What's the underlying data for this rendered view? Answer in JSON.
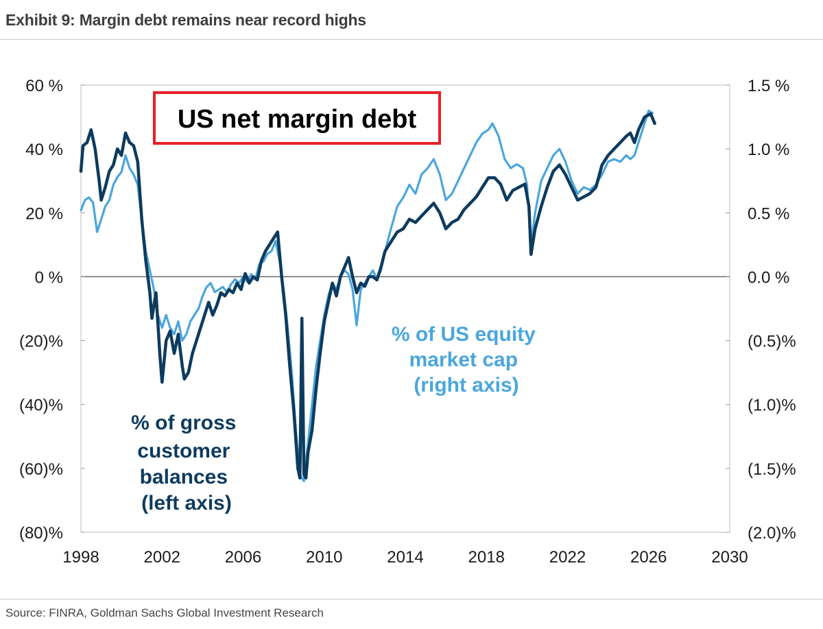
{
  "exhibit_title": "Exhibit 9: Margin debt remains near record highs",
  "source": "Source: FINRA, Goldman Sachs Global Investment Research",
  "chart_data": {
    "type": "line",
    "title": "US net margin debt",
    "xlim": [
      1998,
      2030
    ],
    "x_ticks": [
      "1998",
      "2002",
      "2006",
      "2010",
      "2014",
      "2018",
      "2022",
      "2026",
      "2030"
    ],
    "y_left": {
      "lim": [
        -80,
        60
      ],
      "ticks": [
        {
          "value": 60,
          "label": "60 %"
        },
        {
          "value": 40,
          "label": "40 %"
        },
        {
          "value": 20,
          "label": "20 %"
        },
        {
          "value": 0,
          "label": "0 %"
        },
        {
          "value": -20,
          "label": "(20)%"
        },
        {
          "value": -40,
          "label": "(40)%"
        },
        {
          "value": -60,
          "label": "(60)%"
        },
        {
          "value": -80,
          "label": "(80)%"
        }
      ]
    },
    "y_right": {
      "lim": [
        -2.0,
        1.5
      ],
      "ticks": [
        {
          "value": 1.5,
          "label": "1.5 %"
        },
        {
          "value": 1.0,
          "label": "1.0 %"
        },
        {
          "value": 0.5,
          "label": "0.5 %"
        },
        {
          "value": 0.0,
          "label": "0.0 %"
        },
        {
          "value": -0.5,
          "label": "(0.5)%"
        },
        {
          "value": -1.0,
          "label": "(1.0)%"
        },
        {
          "value": -1.5,
          "label": "(1.5)%"
        },
        {
          "value": -2.0,
          "label": "(2.0)%"
        }
      ]
    },
    "series": [
      {
        "name": "% of gross customer balances (left axis)",
        "label_lines": [
          "% of gross",
          "customer",
          "balances",
          "(left axis)"
        ],
        "axis": "left",
        "color": "#0d3b5e",
        "points": [
          [
            1998.0,
            33
          ],
          [
            1998.1,
            41
          ],
          [
            1998.3,
            42
          ],
          [
            1998.5,
            46
          ],
          [
            1998.7,
            40
          ],
          [
            1998.9,
            30
          ],
          [
            1999.0,
            24
          ],
          [
            1999.2,
            28
          ],
          [
            1999.4,
            33
          ],
          [
            1999.6,
            35
          ],
          [
            1999.8,
            40
          ],
          [
            2000.0,
            38
          ],
          [
            2000.2,
            45
          ],
          [
            2000.4,
            42
          ],
          [
            2000.6,
            41
          ],
          [
            2000.8,
            36
          ],
          [
            2001.0,
            18
          ],
          [
            2001.2,
            5
          ],
          [
            2001.4,
            -5
          ],
          [
            2001.5,
            -13
          ],
          [
            2001.7,
            -5
          ],
          [
            2001.9,
            -25
          ],
          [
            2002.0,
            -33
          ],
          [
            2002.2,
            -20
          ],
          [
            2002.4,
            -17
          ],
          [
            2002.6,
            -24
          ],
          [
            2002.8,
            -18
          ],
          [
            2003.0,
            -28
          ],
          [
            2003.1,
            -32
          ],
          [
            2003.3,
            -30
          ],
          [
            2003.5,
            -24
          ],
          [
            2003.7,
            -20
          ],
          [
            2003.9,
            -16
          ],
          [
            2004.1,
            -12
          ],
          [
            2004.3,
            -8
          ],
          [
            2004.5,
            -12
          ],
          [
            2004.7,
            -9
          ],
          [
            2004.9,
            -5
          ],
          [
            2005.1,
            -6
          ],
          [
            2005.3,
            -4
          ],
          [
            2005.5,
            -5
          ],
          [
            2005.7,
            -2
          ],
          [
            2005.9,
            -4
          ],
          [
            2006.1,
            1
          ],
          [
            2006.3,
            -2
          ],
          [
            2006.5,
            0
          ],
          [
            2006.7,
            -1
          ],
          [
            2006.9,
            5
          ],
          [
            2007.1,
            8
          ],
          [
            2007.3,
            10
          ],
          [
            2007.5,
            12
          ],
          [
            2007.7,
            14
          ],
          [
            2007.9,
            0
          ],
          [
            2008.1,
            -12
          ],
          [
            2008.3,
            -28
          ],
          [
            2008.5,
            -42
          ],
          [
            2008.7,
            -60
          ],
          [
            2008.8,
            -63
          ],
          [
            2008.9,
            -13
          ],
          [
            2009.0,
            -62
          ],
          [
            2009.1,
            -63
          ],
          [
            2009.2,
            -55
          ],
          [
            2009.4,
            -48
          ],
          [
            2009.6,
            -35
          ],
          [
            2009.8,
            -24
          ],
          [
            2010.0,
            -14
          ],
          [
            2010.2,
            -8
          ],
          [
            2010.4,
            -2
          ],
          [
            2010.6,
            -6
          ],
          [
            2010.8,
            0
          ],
          [
            2011.0,
            3
          ],
          [
            2011.2,
            6
          ],
          [
            2011.4,
            0
          ],
          [
            2011.6,
            -5
          ],
          [
            2011.8,
            -2
          ],
          [
            2012.0,
            -3
          ],
          [
            2012.2,
            0
          ],
          [
            2012.4,
            0
          ],
          [
            2012.6,
            -1
          ],
          [
            2012.8,
            3
          ],
          [
            2013.0,
            8
          ],
          [
            2013.3,
            11
          ],
          [
            2013.6,
            14
          ],
          [
            2013.9,
            15
          ],
          [
            2014.2,
            18
          ],
          [
            2014.5,
            17
          ],
          [
            2014.8,
            19
          ],
          [
            2015.1,
            21
          ],
          [
            2015.4,
            23
          ],
          [
            2015.7,
            20
          ],
          [
            2016.0,
            15
          ],
          [
            2016.3,
            17
          ],
          [
            2016.6,
            18
          ],
          [
            2016.9,
            21
          ],
          [
            2017.2,
            23
          ],
          [
            2017.5,
            25
          ],
          [
            2017.8,
            28
          ],
          [
            2018.1,
            31
          ],
          [
            2018.4,
            31
          ],
          [
            2018.7,
            29
          ],
          [
            2019.0,
            24
          ],
          [
            2019.3,
            27
          ],
          [
            2019.6,
            28
          ],
          [
            2019.9,
            29
          ],
          [
            2020.1,
            22
          ],
          [
            2020.2,
            7
          ],
          [
            2020.4,
            15
          ],
          [
            2020.7,
            22
          ],
          [
            2021.0,
            28
          ],
          [
            2021.3,
            33
          ],
          [
            2021.6,
            35
          ],
          [
            2021.9,
            32
          ],
          [
            2022.2,
            28
          ],
          [
            2022.5,
            24
          ],
          [
            2022.8,
            25
          ],
          [
            2023.1,
            26
          ],
          [
            2023.4,
            28
          ],
          [
            2023.7,
            35
          ],
          [
            2024.0,
            38
          ],
          [
            2024.3,
            40
          ],
          [
            2024.6,
            42
          ],
          [
            2024.9,
            44
          ],
          [
            2025.1,
            45
          ],
          [
            2025.3,
            42
          ],
          [
            2025.5,
            46
          ],
          [
            2025.8,
            50
          ],
          [
            2026.1,
            51
          ],
          [
            2026.3,
            48
          ]
        ]
      },
      {
        "name": "% of US equity market cap (right axis)",
        "label_lines": [
          "% of US equity",
          "market cap",
          "(right axis)"
        ],
        "axis": "right",
        "color": "#4aa6dc",
        "points": [
          [
            1998.0,
            0.52
          ],
          [
            1998.2,
            0.6
          ],
          [
            1998.4,
            0.62
          ],
          [
            1998.6,
            0.58
          ],
          [
            1998.8,
            0.35
          ],
          [
            1999.0,
            0.45
          ],
          [
            1999.2,
            0.55
          ],
          [
            1999.4,
            0.6
          ],
          [
            1999.6,
            0.72
          ],
          [
            1999.8,
            0.78
          ],
          [
            2000.0,
            0.82
          ],
          [
            2000.2,
            0.95
          ],
          [
            2000.4,
            0.85
          ],
          [
            2000.6,
            0.8
          ],
          [
            2000.8,
            0.72
          ],
          [
            2001.0,
            0.45
          ],
          [
            2001.2,
            0.2
          ],
          [
            2001.4,
            0.05
          ],
          [
            2001.6,
            -0.1
          ],
          [
            2001.8,
            -0.3
          ],
          [
            2002.0,
            -0.4
          ],
          [
            2002.2,
            -0.3
          ],
          [
            2002.4,
            -0.4
          ],
          [
            2002.6,
            -0.45
          ],
          [
            2002.8,
            -0.35
          ],
          [
            2003.0,
            -0.5
          ],
          [
            2003.2,
            -0.45
          ],
          [
            2003.4,
            -0.35
          ],
          [
            2003.6,
            -0.3
          ],
          [
            2003.8,
            -0.25
          ],
          [
            2004.0,
            -0.15
          ],
          [
            2004.2,
            -0.08
          ],
          [
            2004.4,
            -0.05
          ],
          [
            2004.6,
            -0.12
          ],
          [
            2004.8,
            -0.1
          ],
          [
            2005.0,
            -0.08
          ],
          [
            2005.2,
            -0.12
          ],
          [
            2005.4,
            -0.06
          ],
          [
            2005.6,
            -0.02
          ],
          [
            2005.8,
            -0.05
          ],
          [
            2006.0,
            0.0
          ],
          [
            2006.2,
            -0.04
          ],
          [
            2006.4,
            0.02
          ],
          [
            2006.6,
            -0.02
          ],
          [
            2006.8,
            0.1
          ],
          [
            2007.0,
            0.12
          ],
          [
            2007.2,
            0.18
          ],
          [
            2007.4,
            0.2
          ],
          [
            2007.6,
            0.28
          ],
          [
            2007.8,
            0.12
          ],
          [
            2008.0,
            -0.1
          ],
          [
            2008.2,
            -0.4
          ],
          [
            2008.4,
            -0.75
          ],
          [
            2008.6,
            -1.2
          ],
          [
            2008.8,
            -1.55
          ],
          [
            2009.0,
            -1.6
          ],
          [
            2009.2,
            -1.3
          ],
          [
            2009.4,
            -1.0
          ],
          [
            2009.6,
            -0.7
          ],
          [
            2009.8,
            -0.5
          ],
          [
            2010.0,
            -0.3
          ],
          [
            2010.2,
            -0.15
          ],
          [
            2010.4,
            -0.05
          ],
          [
            2010.6,
            -0.1
          ],
          [
            2010.8,
            0.0
          ],
          [
            2011.0,
            0.05
          ],
          [
            2011.2,
            0.02
          ],
          [
            2011.4,
            -0.1
          ],
          [
            2011.6,
            -0.38
          ],
          [
            2011.8,
            -0.1
          ],
          [
            2012.0,
            -0.05
          ],
          [
            2012.2,
            0.0
          ],
          [
            2012.4,
            0.05
          ],
          [
            2012.6,
            -0.02
          ],
          [
            2012.8,
            0.05
          ],
          [
            2013.0,
            0.2
          ],
          [
            2013.3,
            0.38
          ],
          [
            2013.6,
            0.55
          ],
          [
            2013.9,
            0.62
          ],
          [
            2014.2,
            0.72
          ],
          [
            2014.5,
            0.65
          ],
          [
            2014.8,
            0.8
          ],
          [
            2015.1,
            0.85
          ],
          [
            2015.4,
            0.92
          ],
          [
            2015.7,
            0.8
          ],
          [
            2016.0,
            0.6
          ],
          [
            2016.3,
            0.65
          ],
          [
            2016.6,
            0.75
          ],
          [
            2016.9,
            0.85
          ],
          [
            2017.2,
            0.95
          ],
          [
            2017.5,
            1.05
          ],
          [
            2017.8,
            1.12
          ],
          [
            2018.1,
            1.15
          ],
          [
            2018.3,
            1.2
          ],
          [
            2018.6,
            1.1
          ],
          [
            2018.9,
            0.92
          ],
          [
            2019.2,
            0.85
          ],
          [
            2019.5,
            0.88
          ],
          [
            2019.8,
            0.85
          ],
          [
            2020.0,
            0.72
          ],
          [
            2020.2,
            0.25
          ],
          [
            2020.4,
            0.5
          ],
          [
            2020.7,
            0.75
          ],
          [
            2021.0,
            0.85
          ],
          [
            2021.3,
            0.95
          ],
          [
            2021.6,
            1.0
          ],
          [
            2021.9,
            0.9
          ],
          [
            2022.2,
            0.75
          ],
          [
            2022.5,
            0.65
          ],
          [
            2022.8,
            0.7
          ],
          [
            2023.1,
            0.68
          ],
          [
            2023.4,
            0.72
          ],
          [
            2023.7,
            0.8
          ],
          [
            2024.0,
            0.9
          ],
          [
            2024.3,
            0.92
          ],
          [
            2024.6,
            0.9
          ],
          [
            2024.9,
            0.95
          ],
          [
            2025.1,
            0.92
          ],
          [
            2025.3,
            0.95
          ],
          [
            2025.5,
            1.05
          ],
          [
            2025.8,
            1.2
          ],
          [
            2026.0,
            1.3
          ],
          [
            2026.2,
            1.28
          ]
        ]
      }
    ]
  }
}
